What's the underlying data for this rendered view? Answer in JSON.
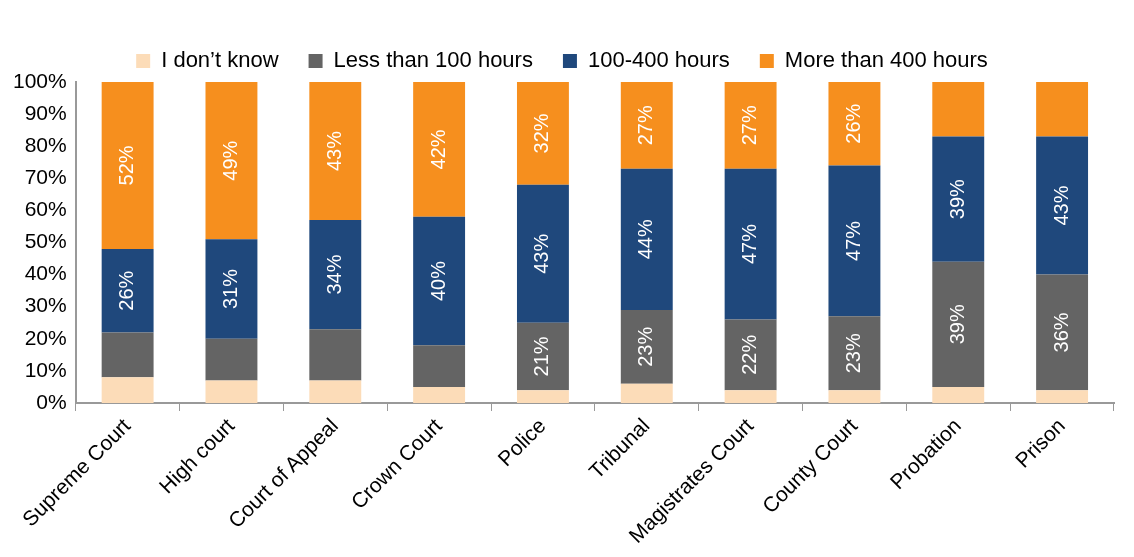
{
  "chart_data": {
    "type": "bar",
    "stacked": true,
    "categories": [
      "Supreme Court",
      "High court",
      "Court of Appeal",
      "Crown Court",
      "Police",
      "Tribunal",
      "Magistrates Court",
      "County Court",
      "Probation",
      "Prison"
    ],
    "series": [
      {
        "name": "I don’t know",
        "color": "#fcdcb8",
        "values": [
          8,
          7,
          7,
          5,
          4,
          6,
          4,
          4,
          5,
          4
        ],
        "value_labels": [
          null,
          null,
          null,
          null,
          null,
          null,
          null,
          null,
          null,
          null
        ]
      },
      {
        "name": "Less than 100 hours",
        "color": "#646464",
        "values": [
          14,
          13,
          16,
          13,
          21,
          23,
          22,
          23,
          39,
          36
        ],
        "value_labels": [
          null,
          null,
          null,
          null,
          "21%",
          "23%",
          "22%",
          "23%",
          "39%",
          "36%"
        ]
      },
      {
        "name": "100-400 hours",
        "color": "#1f487c",
        "values": [
          26,
          31,
          34,
          40,
          43,
          44,
          47,
          47,
          39,
          43
        ],
        "value_labels": [
          "26%",
          "31%",
          "34%",
          "40%",
          "43%",
          "44%",
          "47%",
          "47%",
          "39%",
          "43%"
        ]
      },
      {
        "name": "More than 400 hours",
        "color": "#f68f1e",
        "values": [
          52,
          49,
          43,
          42,
          32,
          27,
          27,
          26,
          17,
          17
        ],
        "value_labels": [
          "52%",
          "49%",
          "43%",
          "42%",
          "32%",
          "27%",
          "27%",
          "26%",
          null,
          null
        ]
      }
    ],
    "ylim": [
      0,
      100
    ],
    "yticks": [
      {
        "value": 0,
        "label": "0%"
      },
      {
        "value": 10,
        "label": "10%"
      },
      {
        "value": 20,
        "label": "20%"
      },
      {
        "value": 30,
        "label": "30%"
      },
      {
        "value": 40,
        "label": "40%"
      },
      {
        "value": 50,
        "label": "50%"
      },
      {
        "value": 60,
        "label": "60%"
      },
      {
        "value": 70,
        "label": "70%"
      },
      {
        "value": 80,
        "label": "80%"
      },
      {
        "value": 90,
        "label": "90%"
      },
      {
        "value": 100,
        "label": "100%"
      }
    ],
    "grid": false,
    "legend": "top"
  }
}
